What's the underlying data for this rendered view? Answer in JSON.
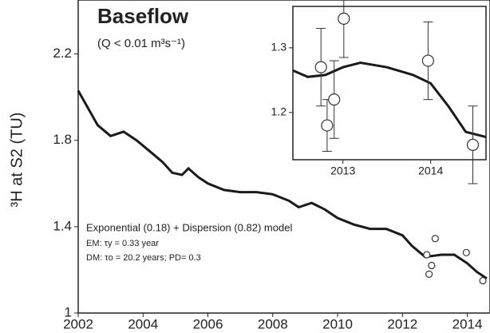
{
  "chart_data": {
    "type": "line",
    "title": "Baseflow",
    "subtitle": "(Q < 0.01 m³s⁻¹)",
    "y_label": "³H at S2 (TU)",
    "annotations": [
      "Exponential (0.18) + Dispersion (0.82) model",
      "EM: τy = 0.33 year",
      "DM: τo = 20.2 years; PD= 0.3"
    ],
    "x": [
      2002.0,
      2002.3,
      2002.6,
      2003.0,
      2003.4,
      2003.8,
      2004.2,
      2004.6,
      2004.9,
      2005.2,
      2005.4,
      2005.7,
      2006.0,
      2006.5,
      2007.0,
      2007.5,
      2008.0,
      2008.5,
      2008.8,
      2009.2,
      2009.6,
      2010.0,
      2010.5,
      2011.0,
      2011.5,
      2012.0,
      2012.3,
      2012.7,
      2013.2,
      2013.6,
      2014.0,
      2014.3,
      2014.6
    ],
    "series": [
      {
        "name": "model",
        "color": "#1a1a1a",
        "values": [
          2.03,
          1.95,
          1.87,
          1.82,
          1.84,
          1.8,
          1.75,
          1.7,
          1.65,
          1.64,
          1.67,
          1.63,
          1.6,
          1.57,
          1.56,
          1.56,
          1.55,
          1.52,
          1.49,
          1.51,
          1.48,
          1.44,
          1.41,
          1.39,
          1.39,
          1.36,
          1.31,
          1.26,
          1.27,
          1.27,
          1.23,
          1.19,
          1.16
        ]
      }
    ],
    "observations": {
      "x": [
        2012.75,
        2012.82,
        2012.9,
        2013.01,
        2013.97,
        2014.48
      ],
      "values": [
        1.27,
        1.18,
        1.22,
        1.345,
        1.28,
        1.15
      ],
      "errors": [
        0.06,
        0.04,
        0.06,
        0.06,
        0.06,
        0.06
      ]
    },
    "xlim": [
      2002,
      2014.7
    ],
    "xticks": [
      2002,
      2004,
      2006,
      2008,
      2010,
      2012,
      2014
    ],
    "ylim": [
      1,
      2.45
    ],
    "yticks": [
      1,
      {
        "value": 1.4,
        "label": "1.4"
      },
      {
        "value": 1.8,
        "label": "1.8"
      },
      {
        "value": 2.2,
        "label": "2.2"
      }
    ],
    "inset": {
      "x": [
        2012.43,
        2012.6,
        2012.8,
        2013.0,
        2013.2,
        2013.5,
        2013.8,
        2014.0,
        2014.2,
        2014.4,
        2014.63
      ],
      "values": [
        1.265,
        1.255,
        1.258,
        1.27,
        1.277,
        1.27,
        1.258,
        1.245,
        1.21,
        1.17,
        1.162
      ],
      "xlim": [
        2012.43,
        2014.63
      ],
      "xticks": [
        2013,
        2014
      ],
      "ylim": [
        1.127,
        1.364
      ],
      "yticks": [
        1.2,
        1.3
      ]
    }
  }
}
